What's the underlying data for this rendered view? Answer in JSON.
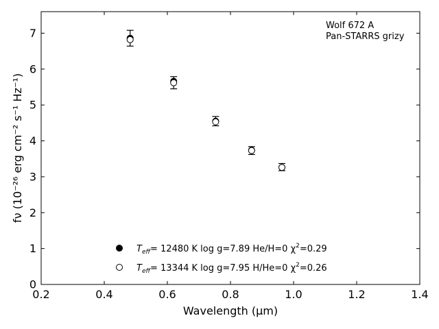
{
  "chart_data": {
    "type": "scatter",
    "xlabel": "Wavelength (μm)",
    "ylabel": "fν (10⁻²⁶ erg cm⁻² s⁻¹ Hz⁻¹)",
    "xlim": [
      0.2,
      1.4
    ],
    "ylim": [
      0,
      7.6
    ],
    "x_ticks": [
      "0.2",
      "0.4",
      "0.6",
      "0.8",
      "1.0",
      "1.2",
      "1.4"
    ],
    "y_ticks": [
      "0",
      "1",
      "2",
      "3",
      "4",
      "5",
      "6",
      "7"
    ],
    "grid": false,
    "annotations": [
      "Wolf 672 A",
      "Pan-STARRS grizy"
    ],
    "legend_position": "lower-center",
    "observed": {
      "x": [
        0.482,
        0.62,
        0.753,
        0.867,
        0.963
      ],
      "y": [
        6.86,
        5.62,
        4.55,
        3.73,
        3.27
      ],
      "yerr": [
        0.22,
        0.17,
        0.13,
        0.11,
        0.1
      ]
    },
    "series": [
      {
        "marker": "filled-circle",
        "label_parts": [
          "T",
          "eff",
          "= 12480 K  log g=7.89  He/H=0  χ",
          "2",
          "=0.29"
        ],
        "x": [
          0.482,
          0.62,
          0.753,
          0.867,
          0.963
        ],
        "y": [
          6.86,
          5.66,
          4.55,
          3.74,
          3.26
        ]
      },
      {
        "marker": "open-circle",
        "label_parts": [
          "T",
          "eff",
          "= 13344 K  log g=7.95  H/He=0  χ",
          "2",
          "=0.26"
        ],
        "x": [
          0.482,
          0.62,
          0.753,
          0.867,
          0.963
        ],
        "y": [
          6.82,
          5.62,
          4.53,
          3.73,
          3.26
        ]
      }
    ]
  }
}
